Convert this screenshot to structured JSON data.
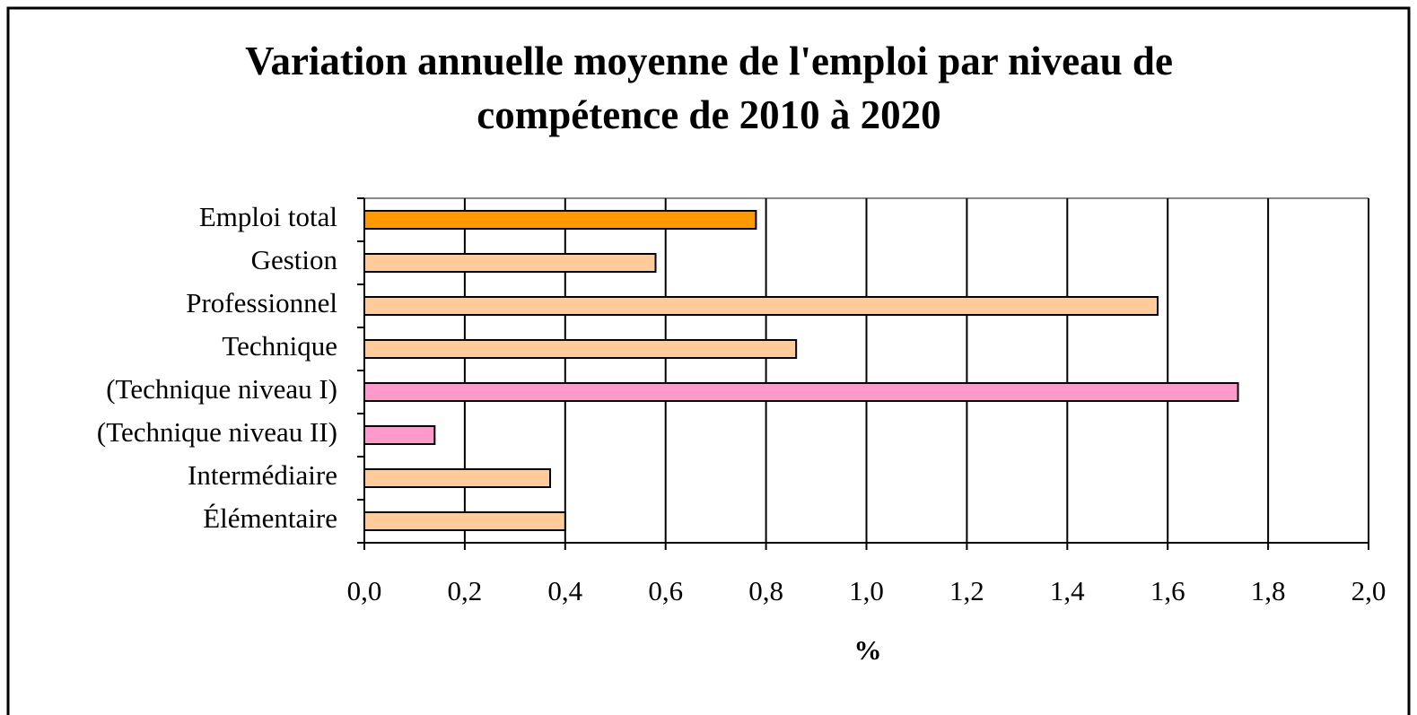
{
  "chart_data": {
    "type": "bar",
    "orientation": "horizontal",
    "title": "Variation annuelle moyenne de l'emploi par niveau de compétence de 2010 à 2020",
    "xlabel": "%",
    "categories": [
      "Emploi total",
      "Gestion",
      "Professionnel",
      "Technique",
      "(Technique niveau I)",
      "(Technique niveau II)",
      "Intermédiaire",
      "Élémentaire"
    ],
    "values": [
      0.78,
      0.58,
      1.58,
      0.86,
      1.74,
      0.14,
      0.37,
      0.4
    ],
    "colors": [
      "#ff9900",
      "#ffcc99",
      "#ffcc99",
      "#ffcc99",
      "#ff99cc",
      "#ff99cc",
      "#ffcc99",
      "#ffcc99"
    ],
    "xlim": [
      0,
      2
    ],
    "xticks": [
      {
        "value": 0,
        "label": "0,0"
      },
      {
        "value": 0.2,
        "label": "0,2"
      },
      {
        "value": 0.4,
        "label": "0,4"
      },
      {
        "value": 0.6,
        "label": "0,6"
      },
      {
        "value": 0.8,
        "label": "0,8"
      },
      {
        "value": 1.0,
        "label": "1,0"
      },
      {
        "value": 1.2,
        "label": "1,2"
      },
      {
        "value": 1.4,
        "label": "1,4"
      },
      {
        "value": 1.6,
        "label": "1,6"
      },
      {
        "value": 1.8,
        "label": "1,8"
      },
      {
        "value": 2.0,
        "label": "2,0"
      }
    ],
    "grid": true
  }
}
